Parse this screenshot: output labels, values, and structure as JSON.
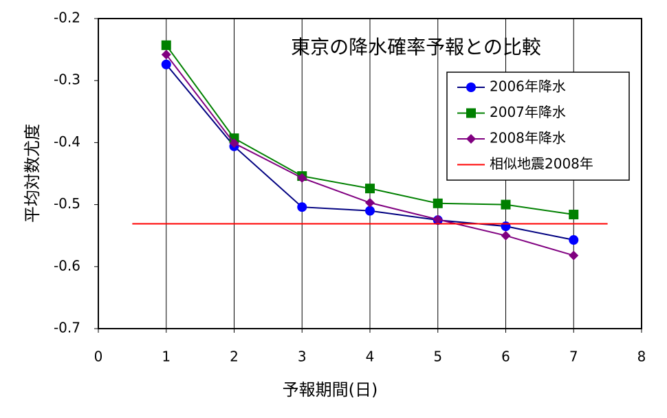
{
  "chart_data": {
    "type": "line",
    "title": "東京の降水確率予報との比較",
    "x_label": "予報期間(日)",
    "y_label": "平均対数尤度",
    "x": [
      1,
      2,
      3,
      4,
      5,
      6,
      7
    ],
    "series": [
      {
        "name": "2006年降水",
        "color": "#0000ff",
        "line_color": "#000080",
        "marker": "circle",
        "values": [
          -0.274,
          -0.406,
          -0.504,
          -0.51,
          -0.525,
          -0.535,
          -0.557
        ]
      },
      {
        "name": "2007年降水",
        "color": "#008000",
        "line_color": "#008000",
        "marker": "square",
        "values": [
          -0.243,
          -0.393,
          -0.454,
          -0.474,
          -0.498,
          -0.5,
          -0.516
        ]
      },
      {
        "name": "2008年降水",
        "color": "#800080",
        "line_color": "#800080",
        "marker": "diamond",
        "values": [
          -0.258,
          -0.401,
          -0.457,
          -0.497,
          -0.524,
          -0.55,
          -0.582
        ]
      },
      {
        "name": "相似地震2008年",
        "color": "#ff0000",
        "line_color": "#ff0000",
        "marker": "none",
        "x": [
          0.5,
          7.5
        ],
        "values": [
          -0.531,
          -0.531
        ]
      }
    ],
    "xlim": [
      0,
      8
    ],
    "xticks": [
      0,
      1,
      2,
      3,
      4,
      5,
      6,
      7,
      8
    ],
    "ylim": [
      -0.7,
      -0.2
    ],
    "yticks": [
      -0.7,
      -0.6,
      -0.5,
      -0.4,
      -0.3,
      -0.2
    ],
    "grid": "x",
    "legend": "upper right"
  }
}
